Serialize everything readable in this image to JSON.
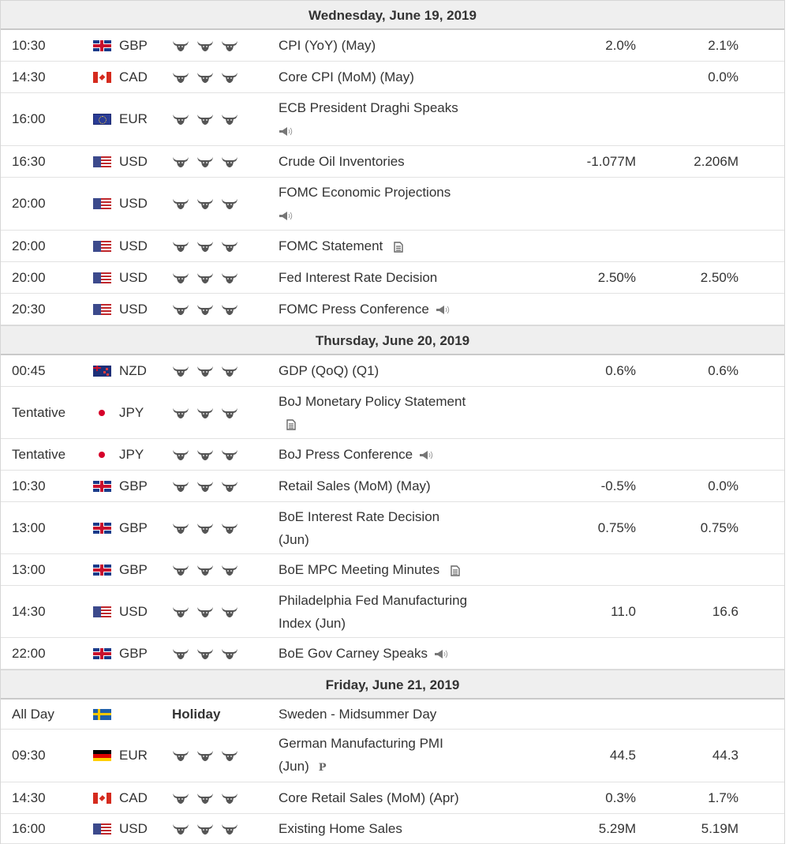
{
  "calendar": {
    "days": [
      {
        "date_label": "Wednesday, June 19, 2019",
        "events": [
          {
            "time": "10:30",
            "flag": "gbp",
            "currency": "GBP",
            "importance": 3,
            "event": "CPI (YoY) (May)",
            "event_icon": "",
            "actual": "2.0%",
            "forecast": "2.1%",
            "h": 40
          },
          {
            "time": "14:30",
            "flag": "cad",
            "currency": "CAD",
            "importance": 3,
            "event": "Core CPI (MoM) (May)",
            "event_icon": "",
            "actual": "",
            "forecast": "0.0%",
            "h": 40
          },
          {
            "time": "16:00",
            "flag": "eur",
            "currency": "EUR",
            "importance": 3,
            "event": "ECB President Draghi Speaks",
            "event_icon": "speaker-icon",
            "icon_newline": true,
            "actual": "",
            "forecast": "",
            "h": 67
          },
          {
            "time": "16:30",
            "flag": "usd",
            "currency": "USD",
            "importance": 3,
            "event": "Crude Oil Inventories",
            "event_icon": "",
            "actual": "-1.077M",
            "forecast": "2.206M",
            "h": 40
          },
          {
            "time": "20:00",
            "flag": "usd",
            "currency": "USD",
            "importance": 3,
            "event": "FOMC Economic Projections",
            "event_icon": "speaker-icon",
            "icon_newline": true,
            "actual": "",
            "forecast": "",
            "h": 67
          },
          {
            "time": "20:00",
            "flag": "usd",
            "currency": "USD",
            "importance": 3,
            "event": "FOMC Statement",
            "event_icon": "document-icon",
            "actual": "",
            "forecast": "",
            "h": 40
          },
          {
            "time": "20:00",
            "flag": "usd",
            "currency": "USD",
            "importance": 3,
            "event": "Fed Interest Rate Decision",
            "event_icon": "",
            "actual": "2.50%",
            "forecast": "2.50%",
            "h": 40
          },
          {
            "time": "20:30",
            "flag": "usd",
            "currency": "USD",
            "importance": 3,
            "event": "FOMC Press Conference",
            "event_icon": "speaker-icon",
            "actual": "",
            "forecast": "",
            "h": 40
          }
        ]
      },
      {
        "date_label": "Thursday, June 20, 2019",
        "events": [
          {
            "time": "00:45",
            "flag": "nzd",
            "currency": "NZD",
            "importance": 3,
            "event": "GDP (QoQ) (Q1)",
            "event_icon": "",
            "actual": "0.6%",
            "forecast": "0.6%",
            "h": 40
          },
          {
            "time": "Tentative",
            "flag": "jpy",
            "currency": "JPY",
            "importance": 3,
            "event": "BoJ Monetary Policy Statement",
            "event_icon": "document-icon",
            "icon_newline": true,
            "actual": "",
            "forecast": "",
            "h": 66
          },
          {
            "time": "Tentative",
            "flag": "jpy",
            "currency": "JPY",
            "importance": 3,
            "event": "BoJ Press Conference",
            "event_icon": "speaker-icon",
            "actual": "",
            "forecast": "",
            "h": 40
          },
          {
            "time": "10:30",
            "flag": "gbp",
            "currency": "GBP",
            "importance": 3,
            "event": "Retail Sales (MoM) (May)",
            "event_icon": "",
            "actual": "-0.5%",
            "forecast": "0.0%",
            "h": 40
          },
          {
            "time": "13:00",
            "flag": "gbp",
            "currency": "GBP",
            "importance": 3,
            "event": "BoE Interest Rate Decision",
            "event_line2": "(Jun)",
            "event_icon": "",
            "actual": "0.75%",
            "forecast": "0.75%",
            "h": 66
          },
          {
            "time": "13:00",
            "flag": "gbp",
            "currency": "GBP",
            "importance": 3,
            "event": "BoE MPC Meeting Minutes",
            "event_icon": "document-icon",
            "actual": "",
            "forecast": "",
            "h": 40
          },
          {
            "time": "14:30",
            "flag": "usd",
            "currency": "USD",
            "importance": 3,
            "event": "Philadelphia Fed Manufacturing",
            "event_line2": "Index (Jun)",
            "event_icon": "",
            "actual": "11.0",
            "forecast": "16.6",
            "h": 66
          },
          {
            "time": "22:00",
            "flag": "gbp",
            "currency": "GBP",
            "importance": 3,
            "event": "BoE Gov Carney Speaks",
            "event_icon": "speaker-icon",
            "actual": "",
            "forecast": "",
            "h": 40
          }
        ]
      },
      {
        "date_label": "Friday, June 21, 2019",
        "events": [
          {
            "time": "All Day",
            "flag": "sek",
            "currency": "",
            "importance": 0,
            "holiday_label": "Holiday",
            "event": "Sweden - Midsummer Day",
            "event_icon": "",
            "actual": "",
            "forecast": "",
            "h": 38
          },
          {
            "time": "09:30",
            "flag": "deu",
            "currency": "EUR",
            "importance": 3,
            "event": "German Manufacturing PMI",
            "event_line2": "(Jun)",
            "event_icon": "preliminary-p-icon",
            "actual": "44.5",
            "forecast": "44.3",
            "h": 67
          },
          {
            "time": "14:30",
            "flag": "cad",
            "currency": "CAD",
            "importance": 3,
            "event": "Core Retail Sales (MoM) (Apr)",
            "event_icon": "",
            "actual": "0.3%",
            "forecast": "1.7%",
            "h": 40
          },
          {
            "time": "16:00",
            "flag": "usd",
            "currency": "USD",
            "importance": 3,
            "event": "Existing Home Sales",
            "event_icon": "",
            "actual": "5.29M",
            "forecast": "5.19M",
            "h": 38
          }
        ]
      }
    ],
    "preliminary_marker": "P",
    "colors": {
      "header_bg": "#efefef",
      "bull_icon": "#555555",
      "row_border": "#e2e2e2"
    }
  }
}
